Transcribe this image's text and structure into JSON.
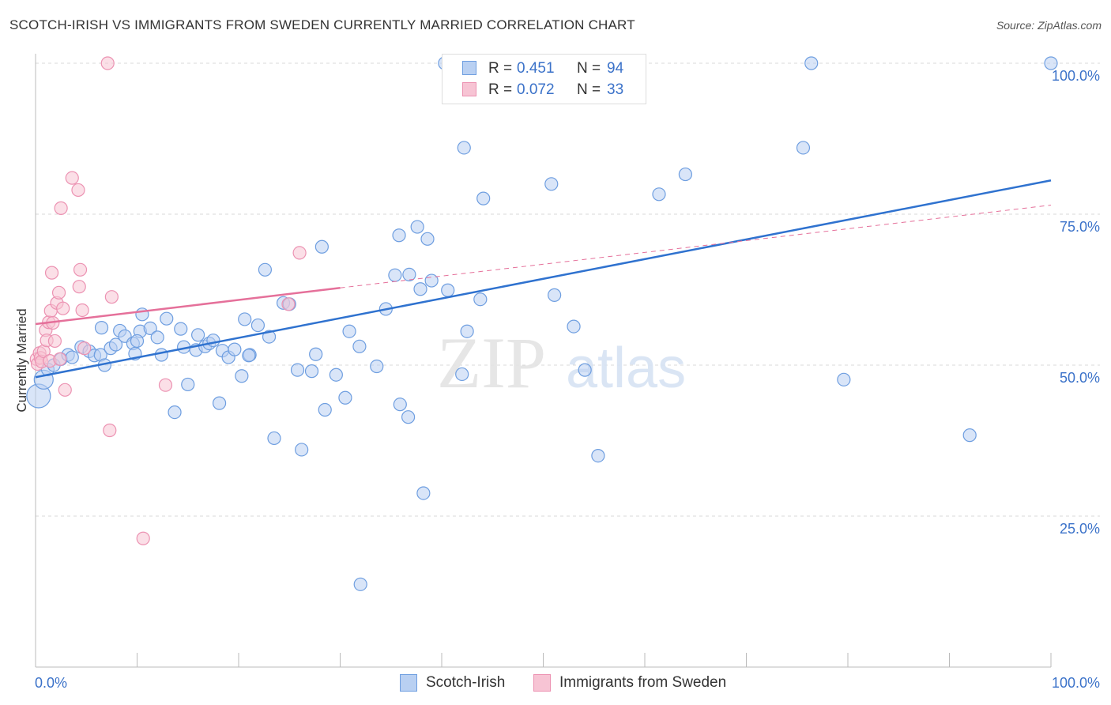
{
  "title": "SCOTCH-IRISH VS IMMIGRANTS FROM SWEDEN CURRENTLY MARRIED CORRELATION CHART",
  "source": "Source: ZipAtlas.com",
  "colors": {
    "blue_fill": "#b9d0f2",
    "blue_stroke": "#6e9ee0",
    "blue_line": "#2f72cf",
    "pink_fill": "#f7c4d4",
    "pink_stroke": "#ec92b2",
    "pink_line": "#e5709a",
    "grid": "#d8d8d8",
    "tick_text": "#3b72c9"
  },
  "legend": {
    "r_label": "R =",
    "n_label": "N =",
    "rows": [
      {
        "series": "Scotch-Irish",
        "r": "0.451",
        "n": "94"
      },
      {
        "series": "Immigrants from Sweden",
        "r": "0.072",
        "n": "33"
      }
    ]
  },
  "bottom_legend": [
    "Scotch-Irish",
    "Immigrants from Sweden"
  ],
  "watermark": {
    "part1": "ZIP",
    "part2": "atlas"
  },
  "chart_data": {
    "type": "scatter",
    "title": "SCOTCH-IRISH VS IMMIGRANTS FROM SWEDEN CURRENTLY MARRIED CORRELATION CHART",
    "xlabel": "",
    "ylabel": "Currently Married",
    "xlim": [
      0,
      100
    ],
    "ylim": [
      0,
      100
    ],
    "x_tick_labels": [
      "0.0%",
      "100.0%"
    ],
    "y_tick_labels": [
      "25.0%",
      "50.0%",
      "75.0%",
      "100.0%"
    ],
    "y_ticks": [
      25,
      50,
      75,
      100
    ],
    "grid": true,
    "legend_position": "top-center",
    "series": [
      {
        "name": "Scotch-Irish",
        "r": 0.451,
        "n": 94,
        "trend": {
          "x": [
            0,
            100
          ],
          "y": [
            48.0,
            80.6
          ],
          "style": "solid"
        },
        "points": [
          [
            0.3,
            44.9
          ],
          [
            0.8,
            47.6
          ],
          [
            1.2,
            49.3
          ],
          [
            1.8,
            50.0
          ],
          [
            2.5,
            51.0
          ],
          [
            3.2,
            51.7
          ],
          [
            3.6,
            51.3
          ],
          [
            4.5,
            53.0
          ],
          [
            5.3,
            52.3
          ],
          [
            5.8,
            51.6
          ],
          [
            6.4,
            51.7
          ],
          [
            6.5,
            56.2
          ],
          [
            6.8,
            50.0
          ],
          [
            7.4,
            52.8
          ],
          [
            7.9,
            53.4
          ],
          [
            8.3,
            55.7
          ],
          [
            8.8,
            54.8
          ],
          [
            9.6,
            53.6
          ],
          [
            9.8,
            51.9
          ],
          [
            10.3,
            55.6
          ],
          [
            10.5,
            58.4
          ],
          [
            11.3,
            56.1
          ],
          [
            12.0,
            54.6
          ],
          [
            12.4,
            51.7
          ],
          [
            12.9,
            57.7
          ],
          [
            13.7,
            42.2
          ],
          [
            14.3,
            56.0
          ],
          [
            14.6,
            53.0
          ],
          [
            15.0,
            46.8
          ],
          [
            15.8,
            52.5
          ],
          [
            16.0,
            55.0
          ],
          [
            16.7,
            53.1
          ],
          [
            17.1,
            53.6
          ],
          [
            17.5,
            54.1
          ],
          [
            18.1,
            43.7
          ],
          [
            18.4,
            52.4
          ],
          [
            19.0,
            51.3
          ],
          [
            19.6,
            52.6
          ],
          [
            20.3,
            48.2
          ],
          [
            20.6,
            57.6
          ],
          [
            21.1,
            51.7
          ],
          [
            21.9,
            56.6
          ],
          [
            22.6,
            65.8
          ],
          [
            23.0,
            54.7
          ],
          [
            23.5,
            37.9
          ],
          [
            24.4,
            60.3
          ],
          [
            25.0,
            60.1
          ],
          [
            25.8,
            49.2
          ],
          [
            26.2,
            36.0
          ],
          [
            27.2,
            49.0
          ],
          [
            27.6,
            51.8
          ],
          [
            28.2,
            69.6
          ],
          [
            28.5,
            42.6
          ],
          [
            29.6,
            48.4
          ],
          [
            30.5,
            44.6
          ],
          [
            30.9,
            55.6
          ],
          [
            31.9,
            53.1
          ],
          [
            33.6,
            49.8
          ],
          [
            34.5,
            59.3
          ],
          [
            35.4,
            64.9
          ],
          [
            35.8,
            71.5
          ],
          [
            35.9,
            43.5
          ],
          [
            36.7,
            41.4
          ],
          [
            36.8,
            65.0
          ],
          [
            37.6,
            72.9
          ],
          [
            37.9,
            62.6
          ],
          [
            38.2,
            28.8
          ],
          [
            38.6,
            70.9
          ],
          [
            39.0,
            64.0
          ],
          [
            40.3,
            100.0
          ],
          [
            40.6,
            62.4
          ],
          [
            42.0,
            48.5
          ],
          [
            42.2,
            86.0
          ],
          [
            42.5,
            55.6
          ],
          [
            43.8,
            60.9
          ],
          [
            44.1,
            77.6
          ],
          [
            45.3,
            100.0
          ],
          [
            50.8,
            80.0
          ],
          [
            51.1,
            61.6
          ],
          [
            53.0,
            56.4
          ],
          [
            54.1,
            49.2
          ],
          [
            55.4,
            35.0
          ],
          [
            57.0,
            100.0
          ],
          [
            57.4,
            100.0
          ],
          [
            61.4,
            78.3
          ],
          [
            64.0,
            81.6
          ],
          [
            75.6,
            86.0
          ],
          [
            76.4,
            100.0
          ],
          [
            79.6,
            47.6
          ],
          [
            92.0,
            38.4
          ],
          [
            100.0,
            100.0
          ],
          [
            32.0,
            13.7
          ],
          [
            21.0,
            51.6
          ],
          [
            10.0,
            54.0
          ]
        ]
      },
      {
        "name": "Immigrants from Sweden",
        "r": 0.072,
        "n": 33,
        "trend": {
          "x": [
            0,
            30
          ],
          "y": [
            56.8,
            62.8
          ],
          "style": "solid",
          "extended": {
            "x": [
              30,
              100
            ],
            "y": [
              62.8,
              76.5
            ],
            "style": "dashed"
          }
        },
        "points": [
          [
            0.1,
            51.0
          ],
          [
            0.2,
            50.2
          ],
          [
            0.4,
            52.0
          ],
          [
            0.5,
            51.2
          ],
          [
            0.6,
            50.6
          ],
          [
            0.8,
            52.3
          ],
          [
            1.0,
            55.8
          ],
          [
            1.1,
            54.1
          ],
          [
            1.3,
            57.1
          ],
          [
            1.4,
            50.7
          ],
          [
            1.5,
            59.0
          ],
          [
            1.6,
            65.3
          ],
          [
            1.7,
            57.0
          ],
          [
            1.9,
            54.0
          ],
          [
            2.1,
            60.3
          ],
          [
            2.3,
            62.0
          ],
          [
            2.4,
            51.0
          ],
          [
            2.7,
            59.4
          ],
          [
            2.9,
            45.9
          ],
          [
            3.6,
            81.0
          ],
          [
            4.2,
            79.0
          ],
          [
            4.3,
            63.0
          ],
          [
            4.4,
            65.8
          ],
          [
            4.6,
            59.1
          ],
          [
            4.8,
            52.8
          ],
          [
            2.5,
            76.0
          ],
          [
            7.1,
            100.0
          ],
          [
            7.3,
            39.2
          ],
          [
            7.5,
            61.3
          ],
          [
            10.6,
            21.3
          ],
          [
            12.8,
            46.7
          ],
          [
            24.9,
            60.1
          ],
          [
            26.0,
            68.6
          ]
        ]
      }
    ]
  }
}
